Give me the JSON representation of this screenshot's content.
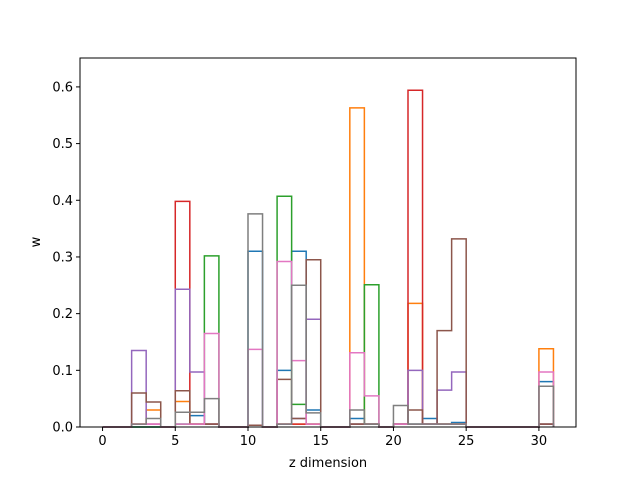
{
  "chart_data": {
    "type": "bar",
    "histtype": "step",
    "xlabel": "z dimension",
    "ylabel": "w",
    "xlim": [
      -1.55,
      32.55
    ],
    "ylim": [
      0,
      0.651
    ],
    "xticks": [
      0,
      5,
      10,
      15,
      20,
      25,
      30
    ],
    "yticks": [
      0.0,
      0.1,
      0.2,
      0.3,
      0.4,
      0.5,
      0.6
    ],
    "ytick_labels": [
      "0.0",
      "0.1",
      "0.2",
      "0.3",
      "0.4",
      "0.5",
      "0.6"
    ],
    "bin_edges": [
      0,
      1,
      2,
      3,
      4,
      5,
      6,
      7,
      8,
      9,
      10,
      11,
      12,
      13,
      14,
      15,
      16,
      17,
      18,
      19,
      20,
      21,
      22,
      23,
      24,
      25,
      26,
      27,
      28,
      29,
      30,
      31
    ],
    "grid": false,
    "series": [
      {
        "color": "#1f77b4",
        "values": [
          0,
          0,
          0,
          0,
          0,
          0.005,
          0.02,
          0.005,
          0,
          0,
          0.31,
          0,
          0.1,
          0.31,
          0.03,
          0,
          0,
          0.015,
          0.005,
          0,
          0.005,
          0.005,
          0.015,
          0.005,
          0.008,
          0,
          0,
          0,
          0,
          0,
          0.08
        ]
      },
      {
        "color": "#ff7f0e",
        "values": [
          0,
          0,
          0.005,
          0.03,
          0,
          0.045,
          0.005,
          0.005,
          0,
          0,
          0.003,
          0,
          0.005,
          0.005,
          0.005,
          0,
          0,
          0.563,
          0.005,
          0,
          0.005,
          0.218,
          0.005,
          0.005,
          0.005,
          0,
          0,
          0,
          0,
          0,
          0.138
        ]
      },
      {
        "color": "#2ca02c",
        "values": [
          0,
          0,
          0,
          0,
          0,
          0.005,
          0.005,
          0.302,
          0,
          0,
          0.003,
          0,
          0.407,
          0.04,
          0.005,
          0,
          0,
          0.005,
          0.251,
          0,
          0.005,
          0.005,
          0.005,
          0.005,
          0.005,
          0,
          0,
          0,
          0,
          0,
          0.005
        ]
      },
      {
        "color": "#d62728",
        "values": [
          0,
          0,
          0.005,
          0.005,
          0,
          0.398,
          0.005,
          0.005,
          0,
          0,
          0.003,
          0,
          0.005,
          0.005,
          0.005,
          0,
          0,
          0.005,
          0.005,
          0,
          0.005,
          0.594,
          0.005,
          0.005,
          0.005,
          0,
          0,
          0,
          0,
          0,
          0.005
        ]
      },
      {
        "color": "#9467bd",
        "values": [
          0,
          0,
          0.135,
          0.005,
          0,
          0.243,
          0.097,
          0.005,
          0,
          0,
          0.003,
          0,
          0.005,
          0.015,
          0.19,
          0,
          0,
          0.005,
          0.005,
          0,
          0.005,
          0.1,
          0.005,
          0.065,
          0.097,
          0,
          0,
          0,
          0,
          0,
          0.005
        ]
      },
      {
        "color": "#8c564b",
        "values": [
          0,
          0,
          0.06,
          0.044,
          0,
          0.064,
          0.005,
          0.005,
          0,
          0,
          0.003,
          0,
          0.084,
          0.015,
          0.295,
          0,
          0,
          0.005,
          0.005,
          0,
          0.005,
          0.03,
          0.005,
          0.17,
          0.332,
          0,
          0,
          0,
          0,
          0,
          0.005
        ]
      },
      {
        "color": "#e377c2",
        "values": [
          0,
          0,
          0.005,
          0.005,
          0,
          0.005,
          0.005,
          0.165,
          0,
          0,
          0.137,
          0,
          0.292,
          0.117,
          0.005,
          0,
          0,
          0.131,
          0.055,
          0,
          0.005,
          0.005,
          0.005,
          0.005,
          0.005,
          0,
          0,
          0,
          0,
          0,
          0.097
        ]
      },
      {
        "color": "#7f7f7f",
        "values": [
          0,
          0,
          0.005,
          0.015,
          0,
          0.026,
          0.026,
          0.05,
          0,
          0,
          0.376,
          0,
          0.005,
          0.25,
          0.025,
          0,
          0,
          0.03,
          0.005,
          0,
          0.038,
          0.005,
          0.005,
          0.005,
          0.005,
          0,
          0,
          0,
          0,
          0,
          0.072
        ]
      }
    ]
  }
}
